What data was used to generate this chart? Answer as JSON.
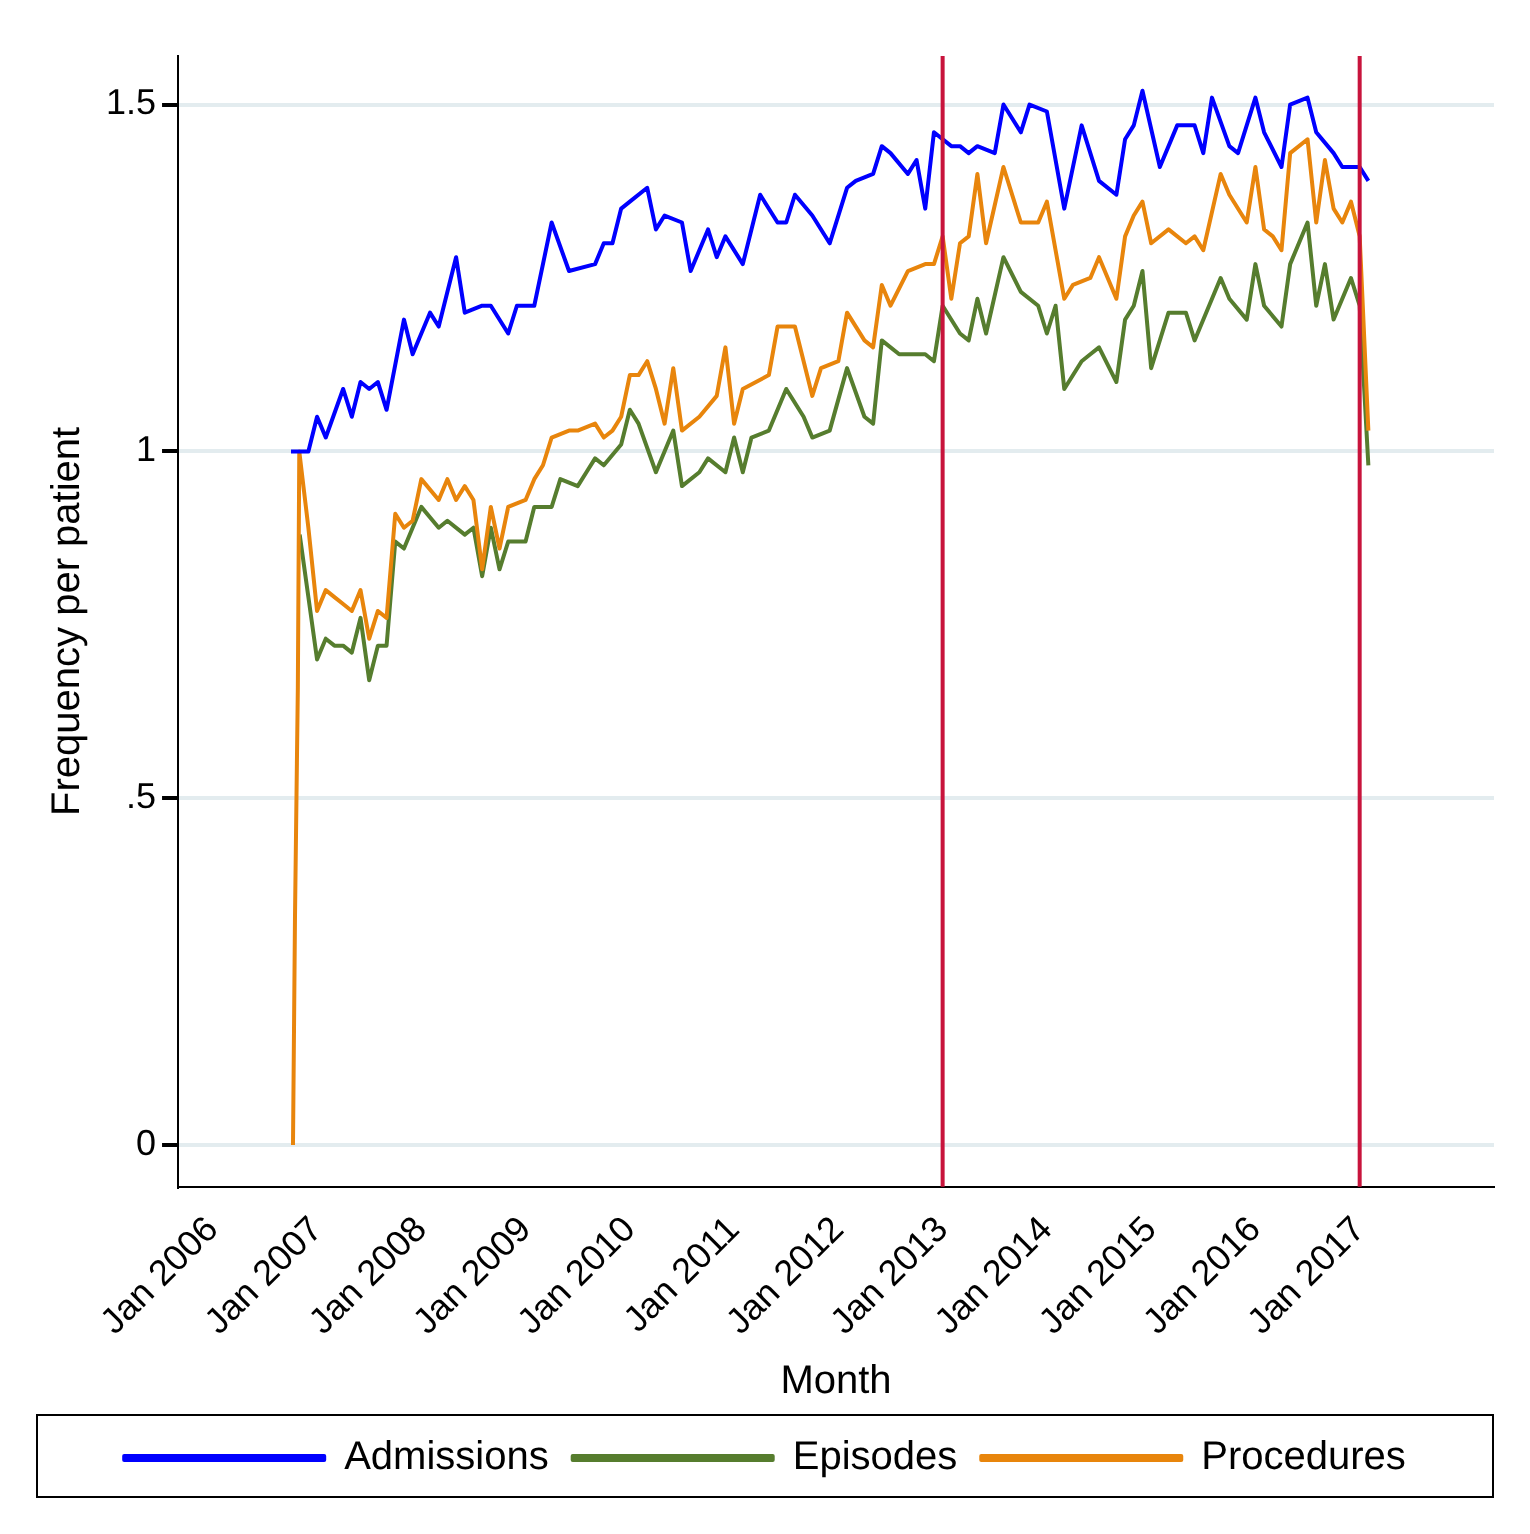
{
  "chart_data": {
    "type": "line",
    "xlabel": "Month",
    "ylabel": "Frequency per patient",
    "xlim": [
      "2005-09",
      "2018-04-15"
    ],
    "xticks": [
      {
        "value": "2006-01",
        "label": "Jan 2006"
      },
      {
        "value": "2007-01",
        "label": "Jan 2007"
      },
      {
        "value": "2008-01",
        "label": "Jan 2008"
      },
      {
        "value": "2009-01",
        "label": "Jan 2009"
      },
      {
        "value": "2010-01",
        "label": "Jan 2010"
      },
      {
        "value": "2011-01",
        "label": "Jan 2011"
      },
      {
        "value": "2012-01",
        "label": "Jan 2012"
      },
      {
        "value": "2013-01",
        "label": "Jan 2013"
      },
      {
        "value": "2014-01",
        "label": "Jan 2014"
      },
      {
        "value": "2015-01",
        "label": "Jan 2015"
      },
      {
        "value": "2016-01",
        "label": "Jan 2016"
      },
      {
        "value": "2017-01",
        "label": "Jan 2017"
      }
    ],
    "ylim": [
      -0.06,
      1.57
    ],
    "yticks": [
      0,
      {
        "value": 0.5,
        "label": ".5"
      },
      1,
      1.5
    ],
    "grid": "y",
    "legend": "bottom",
    "marker": "none",
    "line_style": "solid",
    "ref_lines": [
      {
        "axis": "x",
        "value": "2013-01",
        "color": "#c8143c"
      },
      {
        "axis": "x",
        "value": "2017-01",
        "color": "#c8143c"
      }
    ],
    "series": [
      {
        "name": "Admissions",
        "color": "#0000ff",
        "x": [
          "2006-10",
          "2006-12",
          "2007-01",
          "2007-02",
          "2007-04",
          "2007-05",
          "2007-06",
          "2007-07",
          "2007-08",
          "2007-09",
          "2007-11",
          "2007-12",
          "2008-02",
          "2008-03",
          "2008-05",
          "2008-06",
          "2008-08",
          "2008-09",
          "2008-11",
          "2008-12",
          "2009-02",
          "2009-04",
          "2009-06",
          "2009-09",
          "2009-10",
          "2009-11",
          "2009-12",
          "2010-01",
          "2010-03",
          "2010-04",
          "2010-05",
          "2010-07",
          "2010-08",
          "2010-10",
          "2010-11",
          "2010-12",
          "2011-02",
          "2011-04",
          "2011-06",
          "2011-07",
          "2011-08",
          "2011-10",
          "2011-12",
          "2012-02",
          "2012-03",
          "2012-05",
          "2012-06",
          "2012-07",
          "2012-09",
          "2012-10",
          "2012-11",
          "2012-12",
          "2013-02",
          "2013-03",
          "2013-04",
          "2013-05",
          "2013-07",
          "2013-08",
          "2013-10",
          "2013-11",
          "2014-01",
          "2014-03",
          "2014-05",
          "2014-07",
          "2014-09",
          "2014-10",
          "2014-11",
          "2014-12",
          "2015-02",
          "2015-04",
          "2015-06",
          "2015-07",
          "2015-08",
          "2015-10",
          "2015-11",
          "2016-01",
          "2016-02",
          "2016-04",
          "2016-05",
          "2016-07",
          "2016-08",
          "2016-10",
          "2016-11",
          "2017-01",
          "2017-02"
        ],
        "values": [
          1.0,
          1.0,
          1.05,
          1.02,
          1.09,
          1.05,
          1.1,
          1.09,
          1.1,
          1.06,
          1.19,
          1.14,
          1.2,
          1.18,
          1.28,
          1.2,
          1.21,
          1.21,
          1.17,
          1.21,
          1.21,
          1.33,
          1.26,
          1.27,
          1.3,
          1.3,
          1.35,
          1.36,
          1.38,
          1.32,
          1.34,
          1.33,
          1.26,
          1.32,
          1.28,
          1.31,
          1.27,
          1.37,
          1.33,
          1.33,
          1.37,
          1.34,
          1.3,
          1.38,
          1.39,
          1.4,
          1.44,
          1.43,
          1.4,
          1.42,
          1.35,
          1.46,
          1.44,
          1.44,
          1.43,
          1.44,
          1.43,
          1.5,
          1.46,
          1.5,
          1.49,
          1.35,
          1.47,
          1.39,
          1.37,
          1.45,
          1.47,
          1.52,
          1.41,
          1.47,
          1.47,
          1.43,
          1.51,
          1.44,
          1.43,
          1.51,
          1.46,
          1.41,
          1.5,
          1.51,
          1.46,
          1.43,
          1.41,
          1.41,
          1.39
        ]
      },
      {
        "name": "Procedures",
        "color": "#e8850c",
        "x": [
          "2006-10-08",
          "2006-10-15",
          "2006-10-25",
          "2006-10-30",
          "2006-12",
          "2007-01",
          "2007-02",
          "2007-03",
          "2007-04",
          "2007-05",
          "2007-06",
          "2007-07",
          "2007-08",
          "2007-09",
          "2007-10",
          "2007-11",
          "2007-12",
          "2008-01",
          "2008-03",
          "2008-04",
          "2008-05",
          "2008-06",
          "2008-07",
          "2008-08",
          "2008-09",
          "2008-10",
          "2008-11",
          "2009-01",
          "2009-02",
          "2009-03",
          "2009-04",
          "2009-06",
          "2009-07",
          "2009-09",
          "2009-10",
          "2009-11",
          "2009-12",
          "2010-01",
          "2010-02",
          "2010-03",
          "2010-04",
          "2010-05",
          "2010-06",
          "2010-07",
          "2010-09",
          "2010-11",
          "2010-12",
          "2011-01",
          "2011-02",
          "2011-05",
          "2011-06",
          "2011-08",
          "2011-10",
          "2011-11",
          "2012-01",
          "2012-02",
          "2012-04",
          "2012-05",
          "2012-06",
          "2012-07",
          "2012-09",
          "2012-11",
          "2012-12",
          "2013-01",
          "2013-02",
          "2013-03",
          "2013-04",
          "2013-05",
          "2013-06",
          "2013-08",
          "2013-10",
          "2013-12",
          "2014-01",
          "2014-03",
          "2014-04",
          "2014-06",
          "2014-07",
          "2014-09",
          "2014-10",
          "2014-11",
          "2014-12",
          "2015-01",
          "2015-03",
          "2015-05",
          "2015-06",
          "2015-07",
          "2015-09",
          "2015-10",
          "2015-12",
          "2016-01",
          "2016-02",
          "2016-03",
          "2016-04",
          "2016-05",
          "2016-07",
          "2016-08",
          "2016-09",
          "2016-10",
          "2016-11",
          "2016-12",
          "2017-01",
          "2017-02"
        ],
        "values": [
          0,
          0.33,
          0.66,
          1.0,
          0.89,
          0.77,
          0.8,
          0.79,
          0.78,
          0.77,
          0.8,
          0.73,
          0.77,
          0.76,
          0.91,
          0.89,
          0.9,
          0.96,
          0.93,
          0.96,
          0.93,
          0.95,
          0.93,
          0.83,
          0.92,
          0.86,
          0.92,
          0.93,
          0.96,
          0.98,
          1.02,
          1.03,
          1.03,
          1.04,
          1.02,
          1.03,
          1.05,
          1.11,
          1.11,
          1.13,
          1.09,
          1.04,
          1.12,
          1.03,
          1.05,
          1.08,
          1.15,
          1.04,
          1.09,
          1.11,
          1.18,
          1.18,
          1.08,
          1.12,
          1.13,
          1.2,
          1.16,
          1.15,
          1.24,
          1.21,
          1.26,
          1.27,
          1.27,
          1.31,
          1.22,
          1.3,
          1.31,
          1.4,
          1.3,
          1.41,
          1.33,
          1.33,
          1.36,
          1.22,
          1.24,
          1.25,
          1.28,
          1.22,
          1.31,
          1.34,
          1.36,
          1.3,
          1.32,
          1.3,
          1.31,
          1.29,
          1.4,
          1.37,
          1.33,
          1.41,
          1.32,
          1.31,
          1.29,
          1.43,
          1.45,
          1.33,
          1.42,
          1.35,
          1.33,
          1.36,
          1.31,
          1.03
        ]
      },
      {
        "name": "Episodes",
        "color": "#567d2e",
        "x": [
          "2006-11",
          "2006-12",
          "2007-01",
          "2007-02",
          "2007-03",
          "2007-04",
          "2007-05",
          "2007-06",
          "2007-07",
          "2007-08",
          "2007-09",
          "2007-10",
          "2007-11",
          "2007-12",
          "2008-01",
          "2008-03",
          "2008-04",
          "2008-06",
          "2008-07",
          "2008-08",
          "2008-09",
          "2008-10",
          "2008-11",
          "2009-01",
          "2009-02",
          "2009-04",
          "2009-05",
          "2009-07",
          "2009-08",
          "2009-09",
          "2009-10",
          "2009-12",
          "2010-01",
          "2010-02",
          "2010-04",
          "2010-06",
          "2010-07",
          "2010-09",
          "2010-10",
          "2010-12",
          "2011-01",
          "2011-02",
          "2011-03",
          "2011-05",
          "2011-07",
          "2011-09",
          "2011-10",
          "2011-12",
          "2012-02",
          "2012-04",
          "2012-05",
          "2012-06",
          "2012-08",
          "2012-11",
          "2012-12",
          "2013-01",
          "2013-03",
          "2013-04",
          "2013-05",
          "2013-06",
          "2013-08",
          "2013-10",
          "2013-12",
          "2014-01",
          "2014-02",
          "2014-03",
          "2014-05",
          "2014-06",
          "2014-07",
          "2014-09",
          "2014-10",
          "2014-11",
          "2014-12",
          "2015-01",
          "2015-03",
          "2015-05",
          "2015-06",
          "2015-09",
          "2015-10",
          "2015-12",
          "2016-01",
          "2016-02",
          "2016-04",
          "2016-05",
          "2016-07",
          "2016-08",
          "2016-09",
          "2016-10",
          "2016-12",
          "2017-01",
          "2017-02"
        ],
        "values": [
          0.88,
          0.79,
          0.7,
          0.73,
          0.72,
          0.72,
          0.71,
          0.76,
          0.67,
          0.72,
          0.72,
          0.87,
          0.86,
          0.89,
          0.92,
          0.89,
          0.9,
          0.88,
          0.89,
          0.82,
          0.89,
          0.83,
          0.87,
          0.87,
          0.92,
          0.92,
          0.96,
          0.95,
          0.97,
          0.99,
          0.98,
          1.01,
          1.06,
          1.04,
          0.97,
          1.03,
          0.95,
          0.97,
          0.99,
          0.97,
          1.02,
          0.97,
          1.02,
          1.03,
          1.09,
          1.05,
          1.02,
          1.03,
          1.12,
          1.05,
          1.04,
          1.16,
          1.14,
          1.14,
          1.13,
          1.21,
          1.17,
          1.16,
          1.22,
          1.17,
          1.28,
          1.23,
          1.21,
          1.17,
          1.21,
          1.09,
          1.13,
          1.14,
          1.15,
          1.1,
          1.19,
          1.21,
          1.26,
          1.12,
          1.2,
          1.2,
          1.16,
          1.25,
          1.22,
          1.19,
          1.27,
          1.21,
          1.18,
          1.27,
          1.33,
          1.21,
          1.27,
          1.19,
          1.25,
          1.21,
          0.98
        ]
      }
    ]
  }
}
